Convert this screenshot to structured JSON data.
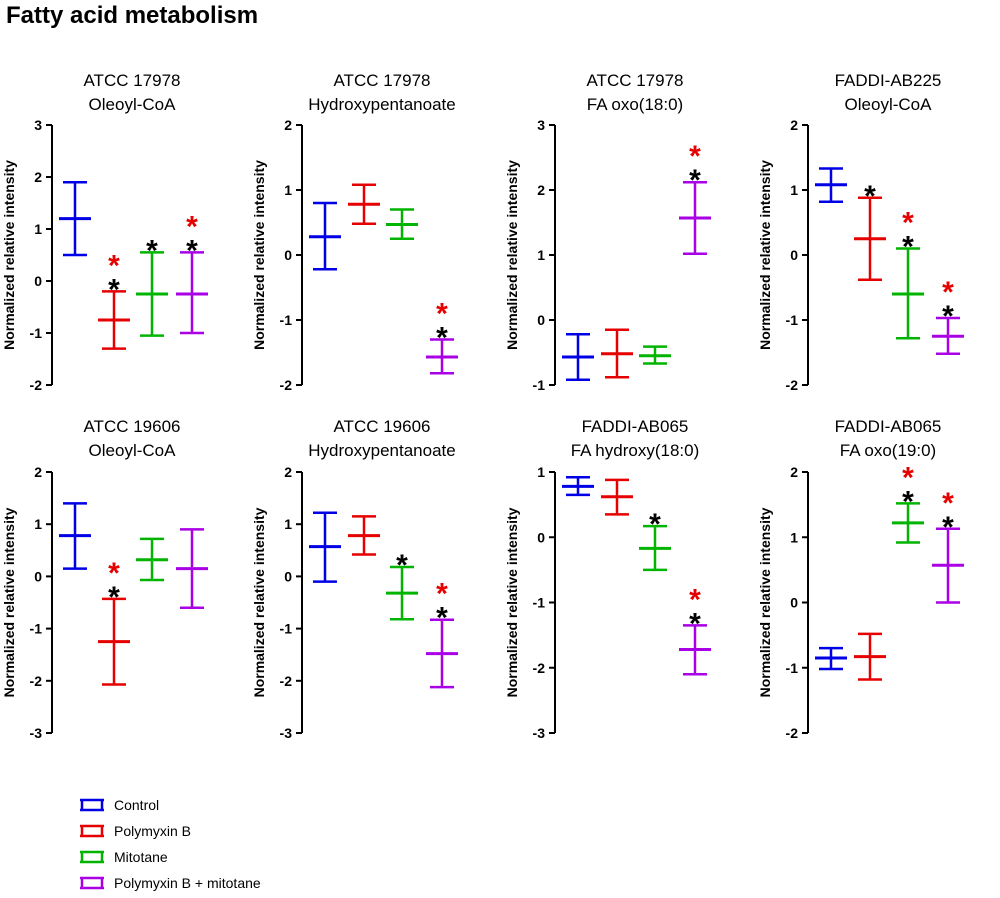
{
  "title": "Fatty acid metabolism",
  "colors": {
    "Control": "#0000e6",
    "Polymyxin B": "#e60000",
    "Mitotane": "#00b400",
    "Polymyxin B + mitotane": "#aa00e6",
    "sig_red": "#e60000",
    "sig_black": "#000000",
    "axis": "#000000"
  },
  "legend": [
    {
      "label": "Control",
      "color": "#0000e6"
    },
    {
      "label": "Polymyxin B",
      "color": "#e60000"
    },
    {
      "label": "Mitotane",
      "color": "#00b400"
    },
    {
      "label": "Polymyxin B + mitotane",
      "color": "#aa00e6"
    }
  ],
  "chart_data": [
    {
      "type": "errorbar",
      "title": [
        "ATCC 17978",
        "Oleoyl-CoA"
      ],
      "ylabel": "Normalized relative intensity",
      "ylim": [
        -2,
        3
      ],
      "yticks": [
        -2,
        -1,
        0,
        1,
        2,
        3
      ],
      "series": [
        {
          "name": "Control",
          "mean": 1.2,
          "low": 0.5,
          "high": 1.9,
          "stars": []
        },
        {
          "name": "Polymyxin B",
          "mean": -0.75,
          "low": -1.3,
          "high": -0.2,
          "stars": [
            "red",
            "black"
          ]
        },
        {
          "name": "Mitotane",
          "mean": -0.25,
          "low": -1.05,
          "high": 0.55,
          "stars": [
            "black"
          ]
        },
        {
          "name": "Polymyxin B + mitotane",
          "mean": -0.25,
          "low": -1.0,
          "high": 0.55,
          "stars": [
            "red",
            "black"
          ]
        }
      ]
    },
    {
      "type": "errorbar",
      "title": [
        "ATCC 17978",
        "Hydroxypentanoate"
      ],
      "ylabel": "Normalized relative intensity",
      "ylim": [
        -2,
        2
      ],
      "yticks": [
        -2,
        -1,
        0,
        1,
        2
      ],
      "series": [
        {
          "name": "Control",
          "mean": 0.28,
          "low": -0.22,
          "high": 0.8,
          "stars": []
        },
        {
          "name": "Polymyxin B",
          "mean": 0.78,
          "low": 0.48,
          "high": 1.08,
          "stars": []
        },
        {
          "name": "Mitotane",
          "mean": 0.47,
          "low": 0.25,
          "high": 0.7,
          "stars": []
        },
        {
          "name": "Polymyxin B + mitotane",
          "mean": -1.57,
          "low": -1.82,
          "high": -1.3,
          "stars": [
            "red",
            "black"
          ]
        }
      ]
    },
    {
      "type": "errorbar",
      "title": [
        "ATCC 17978",
        "FA oxo(18:0)"
      ],
      "ylabel": "Normalized relative intensity",
      "ylim": [
        -1,
        3
      ],
      "yticks": [
        -1,
        0,
        1,
        2,
        3
      ],
      "series": [
        {
          "name": "Control",
          "mean": -0.57,
          "low": -0.92,
          "high": -0.22,
          "stars": []
        },
        {
          "name": "Polymyxin B",
          "mean": -0.52,
          "low": -0.88,
          "high": -0.15,
          "stars": []
        },
        {
          "name": "Mitotane",
          "mean": -0.55,
          "low": -0.67,
          "high": -0.41,
          "stars": []
        },
        {
          "name": "Polymyxin B + mitotane",
          "mean": 1.57,
          "low": 1.02,
          "high": 2.12,
          "stars": [
            "red",
            "black"
          ]
        }
      ]
    },
    {
      "type": "errorbar",
      "title": [
        "FADDI-AB225",
        "Oleoyl-CoA"
      ],
      "ylabel": "Normalized relative intensity",
      "ylim": [
        -2,
        2
      ],
      "yticks": [
        -2,
        -1,
        0,
        1,
        2
      ],
      "series": [
        {
          "name": "Control",
          "mean": 1.08,
          "low": 0.82,
          "high": 1.33,
          "stars": []
        },
        {
          "name": "Polymyxin B",
          "mean": 0.25,
          "low": -0.38,
          "high": 0.88,
          "stars": [
            "black"
          ]
        },
        {
          "name": "Mitotane",
          "mean": -0.6,
          "low": -1.28,
          "high": 0.1,
          "stars": [
            "red",
            "black"
          ]
        },
        {
          "name": "Polymyxin B + mitotane",
          "mean": -1.25,
          "low": -1.52,
          "high": -0.97,
          "stars": [
            "red",
            "black"
          ]
        }
      ]
    },
    {
      "type": "errorbar",
      "title": [
        "ATCC 19606",
        "Oleoyl-CoA"
      ],
      "ylabel": "Normalized relative intensity",
      "ylim": [
        -3,
        2
      ],
      "yticks": [
        -3,
        -2,
        -1,
        0,
        1,
        2
      ],
      "series": [
        {
          "name": "Control",
          "mean": 0.78,
          "low": 0.15,
          "high": 1.4,
          "stars": []
        },
        {
          "name": "Polymyxin B",
          "mean": -1.25,
          "low": -2.07,
          "high": -0.43,
          "stars": [
            "red",
            "black"
          ]
        },
        {
          "name": "Mitotane",
          "mean": 0.32,
          "low": -0.07,
          "high": 0.72,
          "stars": []
        },
        {
          "name": "Polymyxin B + mitotane",
          "mean": 0.15,
          "low": -0.6,
          "high": 0.9,
          "stars": []
        }
      ]
    },
    {
      "type": "errorbar",
      "title": [
        "ATCC 19606",
        "Hydroxypentanoate"
      ],
      "ylabel": "Normalized relative intensity",
      "ylim": [
        -3,
        2
      ],
      "yticks": [
        -3,
        -2,
        -1,
        0,
        1,
        2
      ],
      "series": [
        {
          "name": "Control",
          "mean": 0.57,
          "low": -0.1,
          "high": 1.22,
          "stars": []
        },
        {
          "name": "Polymyxin B",
          "mean": 0.78,
          "low": 0.42,
          "high": 1.15,
          "stars": []
        },
        {
          "name": "Mitotane",
          "mean": -0.32,
          "low": -0.82,
          "high": 0.18,
          "stars": [
            "black"
          ]
        },
        {
          "name": "Polymyxin B + mitotane",
          "mean": -1.48,
          "low": -2.12,
          "high": -0.83,
          "stars": [
            "red",
            "black"
          ]
        }
      ]
    },
    {
      "type": "errorbar",
      "title": [
        "FADDI-AB065",
        "FA hydroxy(18:0)"
      ],
      "ylabel": "Normalized relative intensity",
      "ylim": [
        -3,
        1
      ],
      "yticks": [
        -3,
        -2,
        -1,
        0,
        1
      ],
      "series": [
        {
          "name": "Control",
          "mean": 0.78,
          "low": 0.65,
          "high": 0.92,
          "stars": []
        },
        {
          "name": "Polymyxin B",
          "mean": 0.62,
          "low": 0.35,
          "high": 0.88,
          "stars": []
        },
        {
          "name": "Mitotane",
          "mean": -0.17,
          "low": -0.5,
          "high": 0.17,
          "stars": [
            "black"
          ]
        },
        {
          "name": "Polymyxin B + mitotane",
          "mean": -1.72,
          "low": -2.1,
          "high": -1.35,
          "stars": [
            "red",
            "black"
          ]
        }
      ]
    },
    {
      "type": "errorbar",
      "title": [
        "FADDI-AB065",
        "FA oxo(19:0)"
      ],
      "ylabel": "Normalized relative intensity",
      "ylim": [
        -2,
        2
      ],
      "yticks": [
        -2,
        -1,
        0,
        1,
        2
      ],
      "series": [
        {
          "name": "Control",
          "mean": -0.85,
          "low": -1.02,
          "high": -0.7,
          "stars": []
        },
        {
          "name": "Polymyxin B",
          "mean": -0.83,
          "low": -1.18,
          "high": -0.48,
          "stars": []
        },
        {
          "name": "Mitotane",
          "mean": 1.22,
          "low": 0.92,
          "high": 1.52,
          "stars": [
            "red",
            "black"
          ]
        },
        {
          "name": "Polymyxin B + mitotane",
          "mean": 0.57,
          "low": 0.0,
          "high": 1.13,
          "stars": [
            "red",
            "black"
          ]
        }
      ]
    }
  ]
}
